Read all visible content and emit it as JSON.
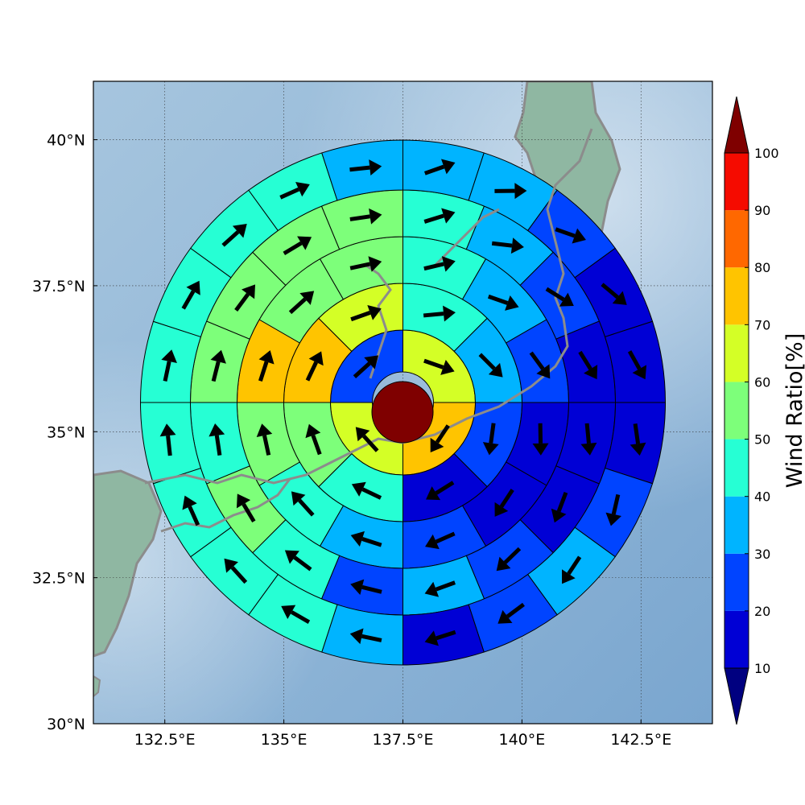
{
  "chart_data": {
    "type": "heatmap",
    "map": {
      "lon_range": [
        131.0,
        144.0
      ],
      "lat_range": [
        30.0,
        41.0
      ],
      "grid": true,
      "lon_ticks": [
        {
          "value": 132.5,
          "label": "132.5°E"
        },
        {
          "value": 135.0,
          "label": "135°E"
        },
        {
          "value": 137.5,
          "label": "137.5°E"
        },
        {
          "value": 140.0,
          "label": "140°E"
        },
        {
          "value": 142.5,
          "label": "142.5°E"
        }
      ],
      "lat_ticks": [
        {
          "value": 30.0,
          "label": "30°N"
        },
        {
          "value": 32.5,
          "label": "32.5°N"
        },
        {
          "value": 35.0,
          "label": "35°N"
        },
        {
          "value": 37.5,
          "label": "37.5°N"
        },
        {
          "value": 40.0,
          "label": "40°N"
        }
      ],
      "center": {
        "lon": 137.5,
        "lat": 35.5,
        "value": 100
      }
    },
    "colorbar": {
      "title": "Wind Ratio[%]",
      "ticks": [
        10,
        20,
        30,
        40,
        50,
        60,
        70,
        80,
        90,
        100
      ],
      "extend": "both",
      "bounds": [
        10,
        20,
        30,
        40,
        50,
        60,
        70,
        80,
        90,
        100
      ],
      "colors": [
        "#0000d5",
        "#0044ff",
        "#00b4ff",
        "#26ffd4",
        "#7dff7a",
        "#d4ff26",
        "#ffc400",
        "#ff6800",
        "#f50b00"
      ],
      "under_color": "#000080",
      "over_color": "#7f0000"
    },
    "rings": [
      {
        "n": 4,
        "values": [
          65,
          75,
          65,
          25
        ]
      },
      {
        "n": 8,
        "values": [
          45,
          35,
          25,
          15,
          45,
          55,
          75,
          65
        ]
      },
      {
        "n": 12,
        "values": [
          45,
          35,
          25,
          15,
          15,
          25,
          35,
          45,
          55,
          75,
          55,
          55
        ]
      },
      {
        "n": 16,
        "values": [
          45,
          35,
          25,
          15,
          15,
          15,
          25,
          35,
          25,
          45,
          55,
          45,
          55,
          55,
          55,
          55
        ]
      },
      {
        "n": 20,
        "values": [
          35,
          35,
          25,
          15,
          15,
          15,
          25,
          35,
          25,
          15,
          35,
          45,
          45,
          45,
          45,
          45,
          45,
          45,
          45,
          35
        ]
      },
      {
        "n": 24,
        "values": [
          35,
          35,
          25,
          25,
          15,
          15,
          15,
          15,
          25,
          25,
          15,
          25,
          25,
          15,
          15,
          25,
          35,
          35,
          45,
          45,
          45,
          45,
          35,
          35
        ]
      }
    ]
  }
}
